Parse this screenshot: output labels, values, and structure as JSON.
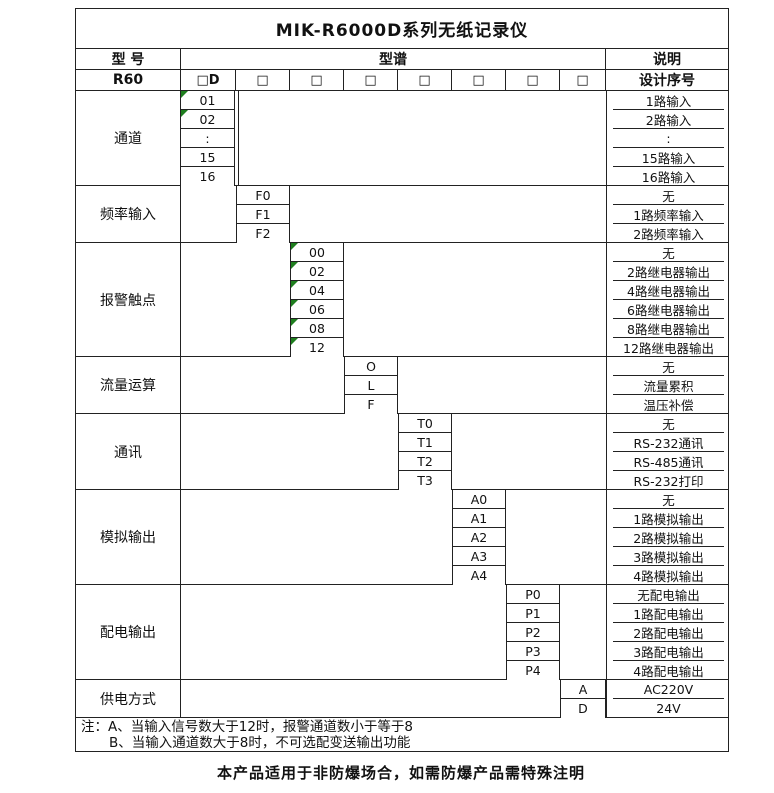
{
  "page": {
    "title": "MIK-R6000D系列无纸记录仪",
    "footer_note": "本产品适用于非防爆场合，如需防爆产品需特殊注明"
  },
  "header": {
    "model_label": "型 号",
    "spectrum_label": "型谱",
    "description_label": "说明",
    "model_value": "R60",
    "code_slots": [
      "□D",
      "□",
      "□",
      "□",
      "□",
      "□",
      "□",
      "□"
    ],
    "design_label": "设计序号"
  },
  "sections": [
    {
      "label": "通道",
      "slot": 0,
      "spacer_line": true,
      "rows": [
        {
          "code": "01",
          "desc": "1路输入",
          "flag": true
        },
        {
          "code": "02",
          "desc": "2路输入",
          "flag": true
        },
        {
          "code": ":",
          "desc": ":"
        },
        {
          "code": "15",
          "desc": "15路输入"
        },
        {
          "code": "16",
          "desc": "16路输入"
        }
      ]
    },
    {
      "label": "频率输入",
      "slot": 1,
      "rows": [
        {
          "code": "F0",
          "desc": "无"
        },
        {
          "code": "F1",
          "desc": "1路频率输入"
        },
        {
          "code": "F2",
          "desc": "2路频率输入"
        }
      ]
    },
    {
      "label": "报警触点",
      "slot": 2,
      "rows": [
        {
          "code": "00",
          "desc": "无",
          "flag": true
        },
        {
          "code": "02",
          "desc": "2路继电器输出",
          "flag": true
        },
        {
          "code": "04",
          "desc": "4路继电器输出",
          "flag": true
        },
        {
          "code": "06",
          "desc": "6路继电器输出",
          "flag": true
        },
        {
          "code": "08",
          "desc": "8路继电器输出",
          "flag": true
        },
        {
          "code": "12",
          "desc": "12路继电器输出",
          "flag": true
        }
      ]
    },
    {
      "label": "流量运算",
      "slot": 3,
      "rows": [
        {
          "code": "O",
          "desc": "无"
        },
        {
          "code": "L",
          "desc": "流量累积"
        },
        {
          "code": "F",
          "desc": "温压补偿"
        }
      ]
    },
    {
      "label": "通讯",
      "slot": 4,
      "rows": [
        {
          "code": "T0",
          "desc": "无"
        },
        {
          "code": "T1",
          "desc": "RS-232通讯"
        },
        {
          "code": "T2",
          "desc": "RS-485通讯"
        },
        {
          "code": "T3",
          "desc": "RS-232打印"
        }
      ]
    },
    {
      "label": "模拟输出",
      "slot": 5,
      "rows": [
        {
          "code": "A0",
          "desc": "无"
        },
        {
          "code": "A1",
          "desc": "1路模拟输出"
        },
        {
          "code": "A2",
          "desc": "2路模拟输出"
        },
        {
          "code": "A3",
          "desc": "3路模拟输出"
        },
        {
          "code": "A4",
          "desc": "4路模拟输出"
        }
      ]
    },
    {
      "label": "配电输出",
      "slot": 6,
      "rows": [
        {
          "code": "P0",
          "desc": "无配电输出"
        },
        {
          "code": "P1",
          "desc": "1路配电输出"
        },
        {
          "code": "P2",
          "desc": "2路配电输出"
        },
        {
          "code": "P3",
          "desc": "3路配电输出"
        },
        {
          "code": "P4",
          "desc": "4路配电输出"
        }
      ]
    },
    {
      "label": "供电方式",
      "slot": 7,
      "rows": [
        {
          "code": "A",
          "desc": "AC220V"
        },
        {
          "code": "D",
          "desc": "24V"
        }
      ]
    }
  ],
  "notes": {
    "line_a": "注：A、当输入信号数大于12时，报警通道数小于等于8",
    "line_b": "B、当输入通道数大于8时，不可选配变送输出功能"
  },
  "colors": {
    "border": "#222222",
    "flag_green": "#1e7e1e",
    "text": "#111111",
    "background": "#ffffff"
  }
}
